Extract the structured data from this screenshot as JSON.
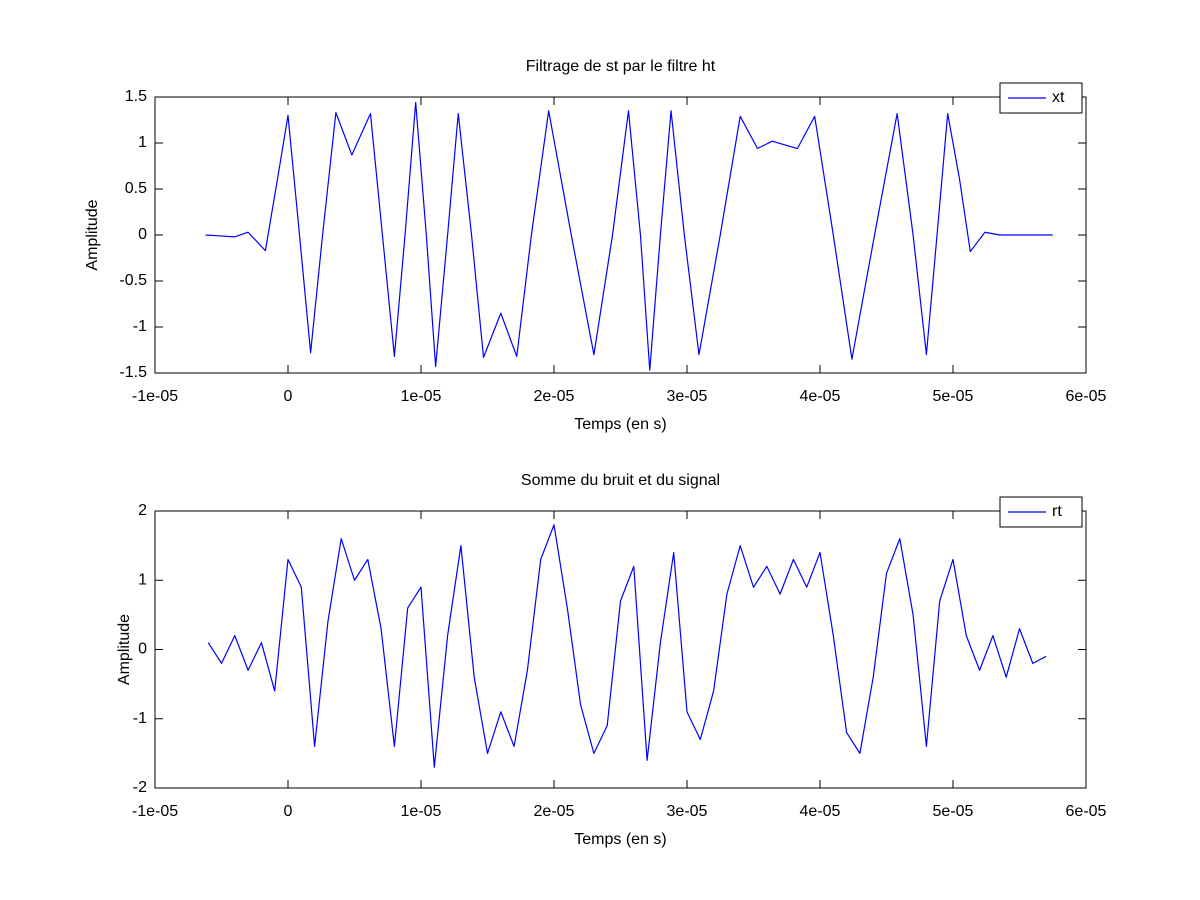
{
  "chart_data": [
    {
      "type": "line",
      "title": "Filtrage de st par le filtre ht",
      "x_label": "Temps (en s)",
      "y_label": "Amplitude",
      "x": [
        -6.2e-06,
        -5.1e-06,
        -4e-06,
        -3e-06,
        -1.7e-06,
        -8e-07,
        0,
        8e-07,
        1.7e-06,
        2.6e-06,
        3.6e-06,
        4.8e-06,
        6.2e-06,
        7.1e-06,
        8e-06,
        8.8e-06,
        9.6e-06,
        1.04e-05,
        1.11e-05,
        1.2e-05,
        1.28e-05,
        1.38e-05,
        1.47e-05,
        1.6e-05,
        1.72e-05,
        1.83e-05,
        1.96e-05,
        2.13e-05,
        2.3e-05,
        2.44e-05,
        2.56e-05,
        2.65e-05,
        2.72e-05,
        2.8e-05,
        2.88e-05,
        2.98e-05,
        3.09e-05,
        3.25e-05,
        3.4e-05,
        3.53e-05,
        3.64e-05,
        3.83e-05,
        3.96e-05,
        4.1e-05,
        4.24e-05,
        4.41e-05,
        4.58e-05,
        4.7e-05,
        4.8e-05,
        4.88e-05,
        4.96e-05,
        5.05e-05,
        5.13e-05,
        5.24e-05,
        5.35e-05,
        5.75e-05
      ],
      "series": [
        {
          "name": "xt",
          "color": "#0000ff",
          "values": [
            0,
            -0.01,
            -0.02,
            0.03,
            -0.17,
            0.6,
            1.3,
            0.1,
            -1.28,
            0,
            1.33,
            0.87,
            1.32,
            0,
            -1.32,
            0,
            1.44,
            0,
            -1.43,
            0,
            1.32,
            0,
            -1.33,
            -0.85,
            -1.32,
            0,
            1.35,
            0,
            -1.3,
            0,
            1.35,
            0,
            -1.47,
            0,
            1.35,
            0,
            -1.3,
            0,
            1.29,
            0.94,
            1.02,
            0.94,
            1.29,
            0,
            -1.35,
            0,
            1.32,
            0,
            -1.3,
            0,
            1.32,
            0.6,
            -0.18,
            0.03,
            0,
            0
          ]
        }
      ],
      "xlim": [
        -1e-05,
        6e-05
      ],
      "ylim": [
        -1.5,
        1.5
      ],
      "xticks": [
        {
          "value": -1e-05,
          "label": "-1e-05"
        },
        0,
        {
          "value": 1e-05,
          "label": "1e-05"
        },
        {
          "value": 2e-05,
          "label": "2e-05"
        },
        {
          "value": 3e-05,
          "label": "3e-05"
        },
        {
          "value": 4e-05,
          "label": "4e-05"
        },
        {
          "value": 5e-05,
          "label": "5e-05"
        },
        {
          "value": 6e-05,
          "label": "6e-05"
        }
      ],
      "yticks": [
        -1.5,
        -1,
        -0.5,
        0,
        0.5,
        1,
        1.5
      ],
      "legend": "northeast"
    },
    {
      "type": "line",
      "title": "Somme du bruit et du signal",
      "x_label": "Temps (en s)",
      "y_label": "Amplitude",
      "x": [
        -6e-06,
        -5e-06,
        -4e-06,
        -3e-06,
        -2e-06,
        -1e-06,
        0,
        1e-06,
        2e-06,
        3e-06,
        4e-06,
        5e-06,
        6e-06,
        7e-06,
        8e-06,
        9e-06,
        1e-05,
        1.1e-05,
        1.2e-05,
        1.3e-05,
        1.4e-05,
        1.5e-05,
        1.6e-05,
        1.7e-05,
        1.8e-05,
        1.9e-05,
        2e-05,
        2.1e-05,
        2.2e-05,
        2.3e-05,
        2.4e-05,
        2.5e-05,
        2.6e-05,
        2.7e-05,
        2.8e-05,
        2.9e-05,
        3e-05,
        3.1e-05,
        3.2e-05,
        3.3e-05,
        3.4e-05,
        3.5e-05,
        3.6e-05,
        3.7e-05,
        3.8e-05,
        3.9e-05,
        4e-05,
        4.1e-05,
        4.2e-05,
        4.3e-05,
        4.4e-05,
        4.5e-05,
        4.6e-05,
        4.7e-05,
        4.8e-05,
        4.9e-05,
        5e-05,
        5.1e-05,
        5.2e-05,
        5.3e-05,
        5.4e-05,
        5.5e-05,
        5.6e-05,
        5.7e-05
      ],
      "series": [
        {
          "name": "rt",
          "color": "#0000ff",
          "values": [
            0.1,
            -0.2,
            0.2,
            -0.3,
            0.1,
            -0.6,
            1.3,
            0.9,
            -1.4,
            0.4,
            1.6,
            1.0,
            1.3,
            0.3,
            -1.4,
            0.6,
            0.9,
            -1.7,
            0.2,
            1.5,
            -0.4,
            -1.5,
            -0.9,
            -1.4,
            -0.3,
            1.3,
            1.8,
            0.6,
            -0.8,
            -1.5,
            -1.1,
            0.7,
            1.2,
            -1.6,
            0.1,
            1.4,
            -0.9,
            -1.3,
            -0.6,
            0.8,
            1.5,
            0.9,
            1.2,
            0.8,
            1.3,
            0.9,
            1.4,
            0.2,
            -1.2,
            -1.5,
            -0.4,
            1.1,
            1.6,
            0.5,
            -1.4,
            0.7,
            1.3,
            0.2,
            -0.3,
            0.2,
            -0.4,
            0.3,
            -0.2,
            -0.1
          ]
        }
      ],
      "xlim": [
        -1e-05,
        6e-05
      ],
      "ylim": [
        -2,
        2
      ],
      "xticks": [
        {
          "value": -1e-05,
          "label": "-1e-05"
        },
        0,
        {
          "value": 1e-05,
          "label": "1e-05"
        },
        {
          "value": 2e-05,
          "label": "2e-05"
        },
        {
          "value": 3e-05,
          "label": "3e-05"
        },
        {
          "value": 4e-05,
          "label": "4e-05"
        },
        {
          "value": 5e-05,
          "label": "5e-05"
        },
        {
          "value": 6e-05,
          "label": "6e-05"
        }
      ],
      "yticks": [
        -2,
        -1,
        0,
        1,
        2
      ],
      "legend": "northeast"
    }
  ]
}
